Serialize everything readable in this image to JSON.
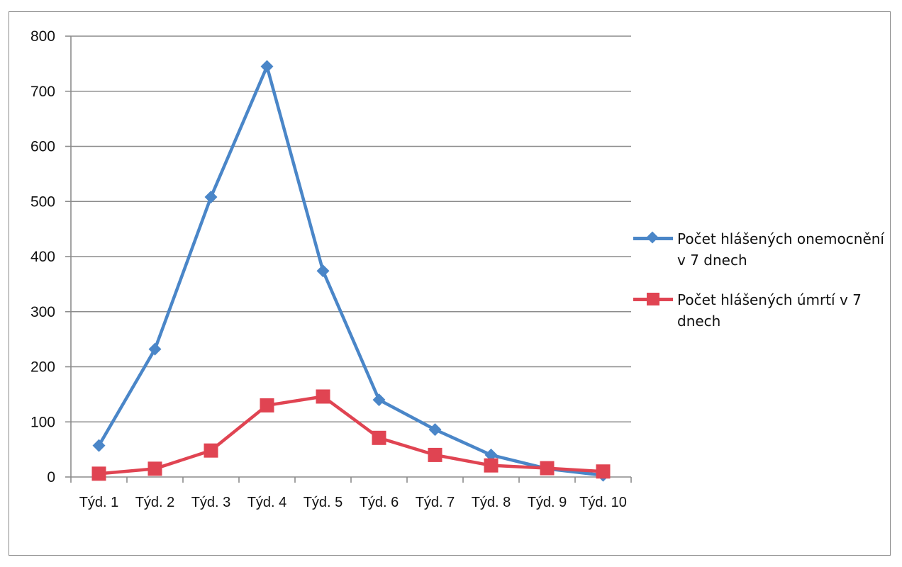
{
  "chart_data": {
    "type": "line",
    "categories": [
      "Týd. 1",
      "Týd. 2",
      "Týd. 3",
      "Týd. 4",
      "Týd. 5",
      "Týd. 6",
      "Týd. 7",
      "Týd. 8",
      "Týd. 9",
      "Týd. 10"
    ],
    "ylim": [
      0,
      800
    ],
    "yticks": [
      "0",
      "100",
      "200",
      "300",
      "400",
      "500",
      "600",
      "700",
      "800"
    ],
    "grid": true,
    "legend_position": "right",
    "series": [
      {
        "name": "Počet hlášených onemocnění v 7 dnech",
        "values": [
          57,
          232,
          508,
          745,
          374,
          140,
          86,
          40,
          15,
          3
        ],
        "color": "#4a86c8",
        "marker": "diamond"
      },
      {
        "name": "Počet hlášených úmrtí v 7 dnech",
        "values": [
          6,
          15,
          48,
          130,
          146,
          71,
          40,
          21,
          16,
          10
        ],
        "color": "#e04452",
        "marker": "square"
      }
    ]
  }
}
